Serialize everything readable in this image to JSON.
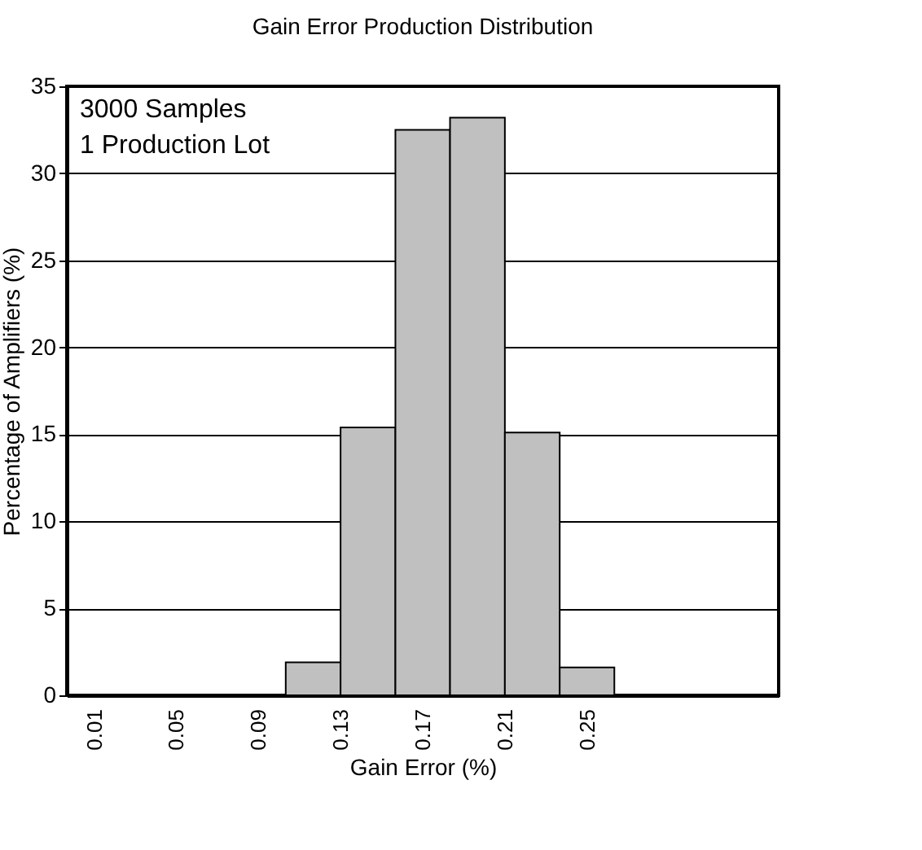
{
  "chart_data": {
    "type": "histogram",
    "title": "Gain Error Production Distribution",
    "xlabel": "Gain Error (%)",
    "ylabel": "Percentage of Amplifiers (%)",
    "bins": [
      -0.0033,
      0.0233,
      0.05,
      0.0767,
      0.1033,
      0.13,
      0.1567,
      0.1833,
      0.21,
      0.2367,
      0.2633,
      0.29,
      0.3167,
      0.3433
    ],
    "values": [
      0,
      0,
      0,
      0,
      1.9,
      15.4,
      32.5,
      33.2,
      15.1,
      1.6,
      0,
      0,
      0
    ],
    "color": "#c0c0c0",
    "xlim": [
      -0.0033,
      0.3433
    ],
    "xticks": [
      0.01,
      0.05,
      0.09,
      0.13,
      0.17,
      0.21,
      0.25
    ],
    "ylim": [
      0,
      35
    ],
    "yticks": [
      0,
      5,
      10,
      15,
      20,
      25,
      30,
      35
    ],
    "grid": "y",
    "annotations": [
      "3000 Samples",
      "1 Production Lot"
    ]
  }
}
